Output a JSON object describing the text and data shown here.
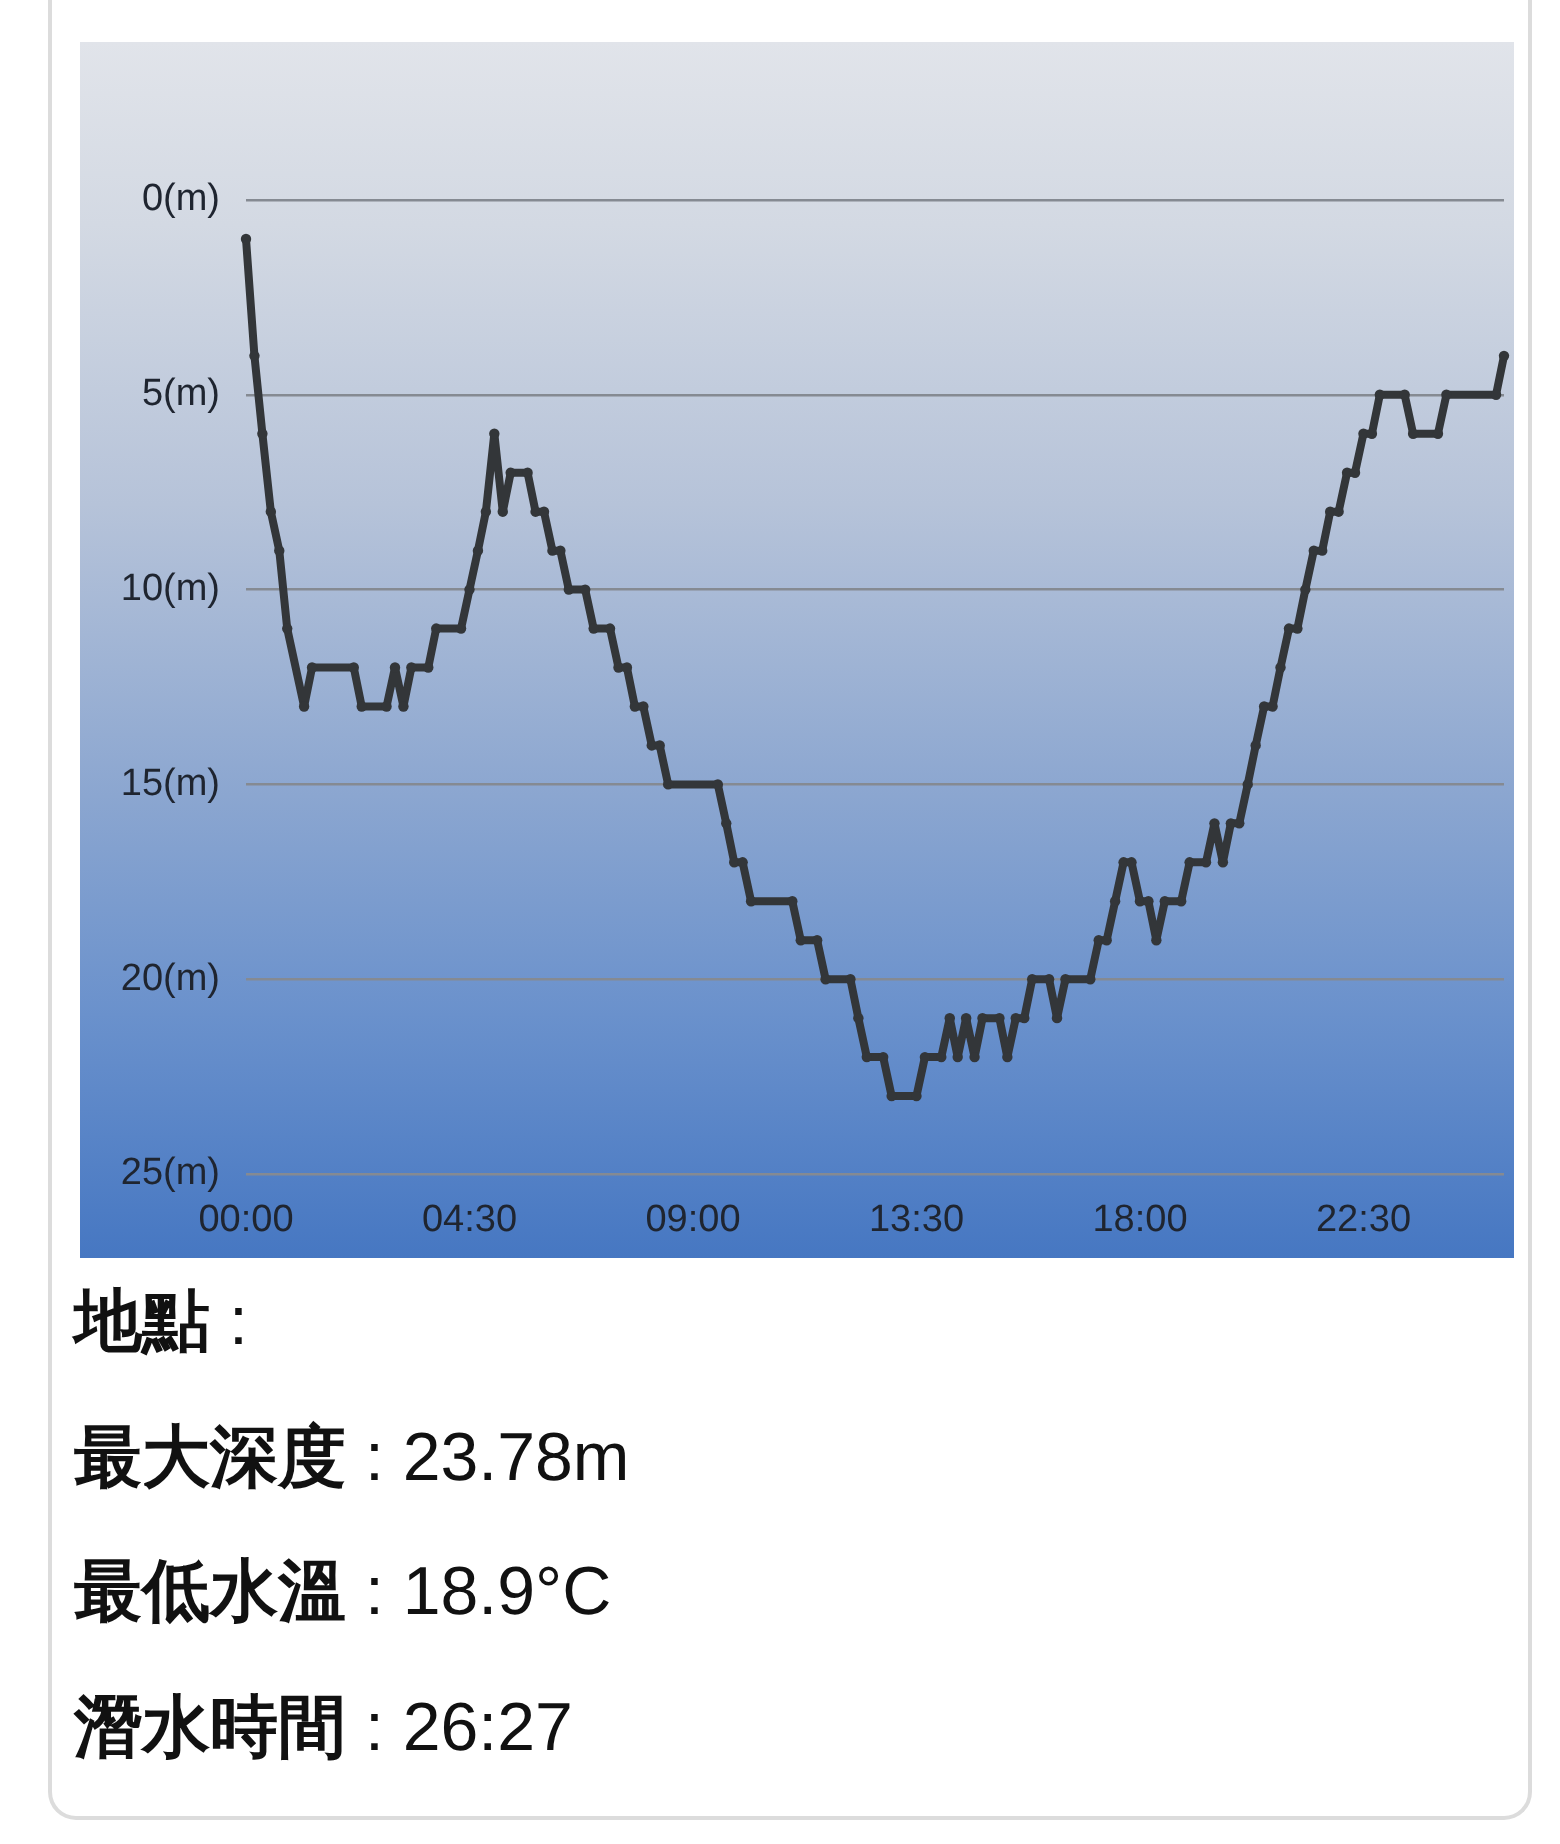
{
  "chart_data": {
    "type": "line",
    "x": [
      0,
      0.17,
      0.33,
      0.5,
      0.67,
      0.83,
      1.17,
      1.33,
      2.17,
      2.33,
      2.83,
      3,
      3.17,
      3.33,
      3.67,
      3.83,
      4.33,
      4.5,
      4.67,
      4.83,
      5,
      5.17,
      5.33,
      5.67,
      5.83,
      6,
      6.17,
      6.33,
      6.5,
      6.83,
      7,
      7.33,
      7.5,
      7.67,
      7.83,
      8,
      8.17,
      8.33,
      8.5,
      9.5,
      9.67,
      9.83,
      10,
      10.17,
      11,
      11.17,
      11.5,
      11.67,
      12.17,
      12.33,
      12.5,
      12.83,
      13,
      13.5,
      13.67,
      14,
      14.17,
      14.33,
      14.5,
      14.67,
      14.83,
      15.17,
      15.33,
      15.5,
      15.67,
      15.83,
      16.17,
      16.33,
      16.5,
      17,
      17.17,
      17.33,
      17.5,
      17.67,
      17.83,
      18,
      18.17,
      18.33,
      18.5,
      18.83,
      19,
      19.33,
      19.5,
      19.67,
      19.83,
      20,
      20.17,
      20.33,
      20.5,
      20.67,
      20.83,
      21,
      21.17,
      21.33,
      21.5,
      21.67,
      21.83,
      22,
      22.17,
      22.33,
      22.5,
      22.67,
      22.83,
      23.33,
      23.5,
      24,
      24.17,
      25.17,
      25.33
    ],
    "series": [
      {
        "color": "#333639",
        "values": [
          1,
          4,
          6,
          8,
          9,
          11,
          13,
          12,
          12,
          13,
          13,
          12,
          13,
          12,
          12,
          11,
          11,
          10,
          9,
          8,
          6,
          8,
          7,
          7,
          8,
          8,
          9,
          9,
          10,
          10,
          11,
          11,
          12,
          12,
          13,
          13,
          14,
          14,
          15,
          15,
          16,
          17,
          17,
          18,
          18,
          19,
          19,
          20,
          20,
          21,
          22,
          22,
          23,
          23,
          22,
          22,
          21,
          22,
          21,
          22,
          21,
          21,
          22,
          21,
          21,
          20,
          20,
          21,
          20,
          20,
          19,
          19,
          18,
          17,
          17,
          18,
          18,
          19,
          18,
          18,
          17,
          17,
          16,
          17,
          16,
          16,
          15,
          14,
          13,
          13,
          12,
          11,
          11,
          10,
          9,
          9,
          8,
          8,
          7,
          7,
          6,
          6,
          5,
          5,
          6,
          6,
          5,
          5,
          4
        ]
      }
    ],
    "xlim": [
      0,
      25.33
    ],
    "xticks": [
      {
        "value": 0,
        "label": "00:00"
      },
      {
        "value": 4.5,
        "label": "04:30"
      },
      {
        "value": 9,
        "label": "09:00"
      },
      {
        "value": 13.5,
        "label": "13:30"
      },
      {
        "value": 18,
        "label": "18:00"
      },
      {
        "value": 22.5,
        "label": "22:30"
      }
    ],
    "ylim": [
      25,
      0
    ],
    "yticks": [
      {
        "value": 0,
        "label": "0(m)"
      },
      {
        "value": 5,
        "label": "5(m)"
      },
      {
        "value": 10,
        "label": "10(m)"
      },
      {
        "value": 15,
        "label": "15(m)"
      },
      {
        "value": 20,
        "label": "20(m)"
      },
      {
        "value": 25,
        "label": "25(m)"
      }
    ],
    "grid": "y",
    "marker": "circle",
    "line_style": "solid",
    "annotations": [
      "地點 :",
      "最大深度 : 23.78m",
      "最低水溫 : 18.9°C",
      "潛水時間 : 26:27"
    ]
  }
}
